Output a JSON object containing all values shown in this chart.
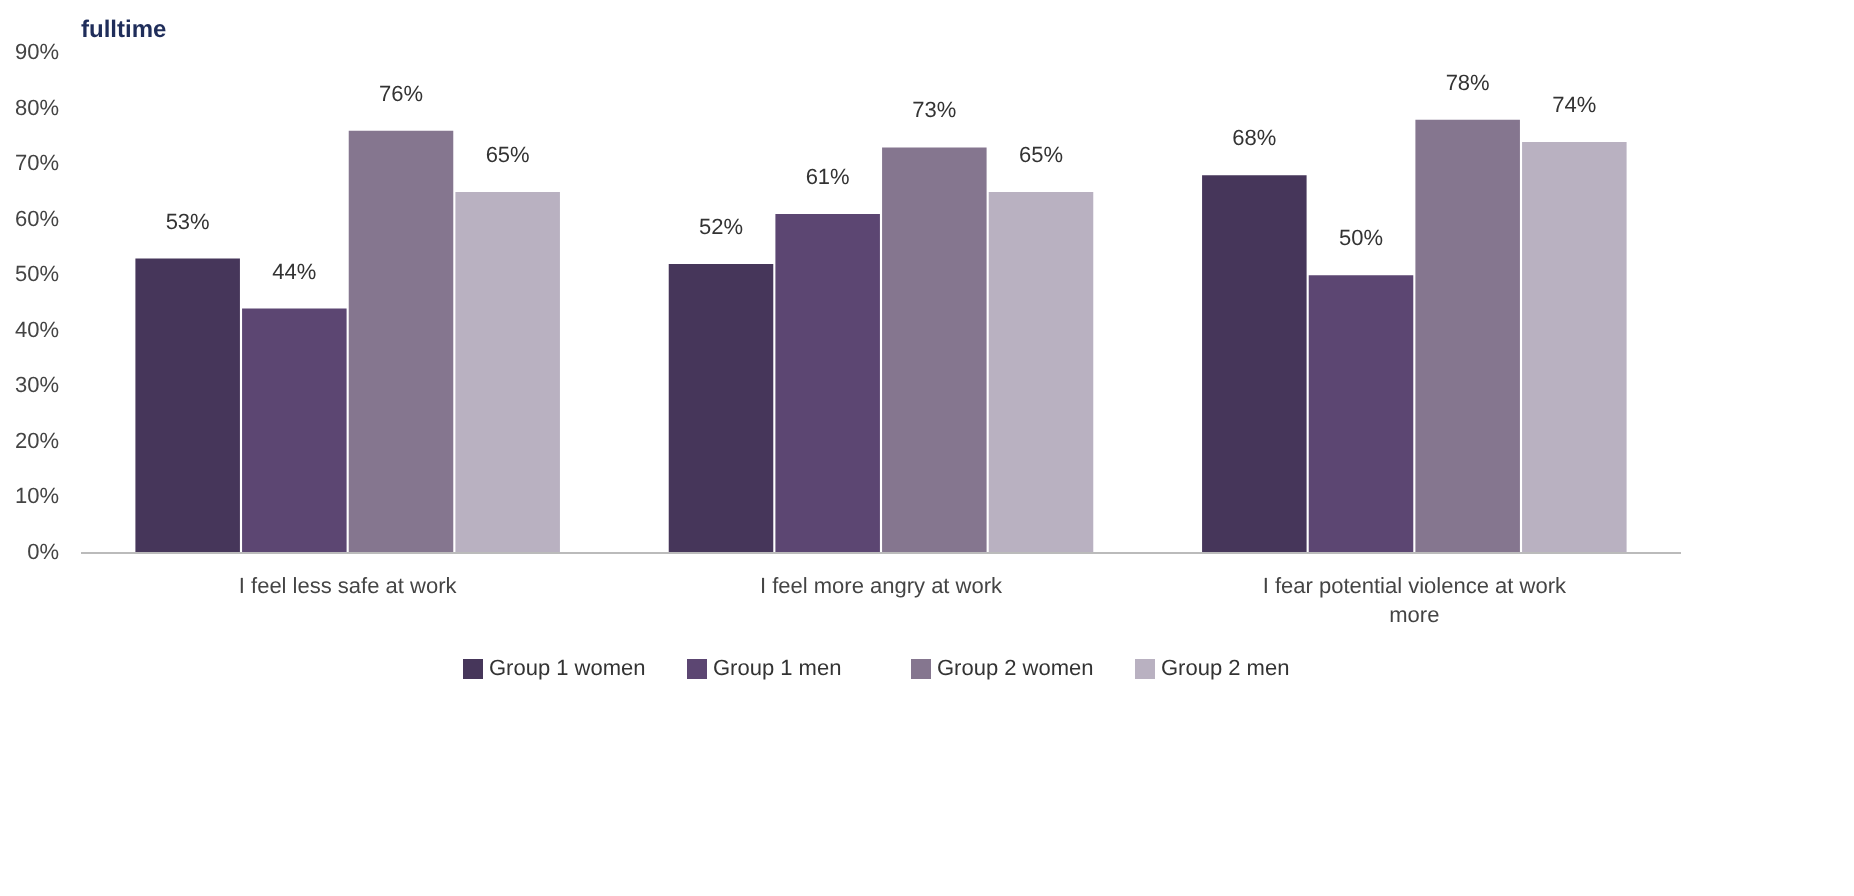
{
  "chart_data": {
    "type": "bar",
    "title": "fulltime",
    "categories": [
      "I feel less safe at work",
      "I feel more angry at work",
      "I fear potential violence at work more"
    ],
    "series": [
      {
        "name": "Group 1 women",
        "color": "#46365a",
        "values": [
          53,
          52,
          68
        ],
        "value_labels": [
          "53%",
          "52%",
          "68%"
        ]
      },
      {
        "name": "Group 1 men",
        "color": "#5c4672",
        "values": [
          44,
          61,
          50
        ],
        "value_labels": [
          "44%",
          "61%",
          "50%"
        ]
      },
      {
        "name": "Group 2 women",
        "color": "#85768f",
        "values": [
          76,
          73,
          78
        ],
        "value_labels": [
          "76%",
          "73%",
          "78%"
        ]
      },
      {
        "name": "Group 2 men",
        "color": "#b9b1c1",
        "values": [
          65,
          65,
          74
        ],
        "value_labels": [
          "65%",
          "65%",
          "74%"
        ]
      }
    ],
    "ylim": [
      0,
      90
    ],
    "yticks": [
      {
        "value": 0,
        "label": "0%"
      },
      {
        "value": 10,
        "label": "10%"
      },
      {
        "value": 20,
        "label": "20%"
      },
      {
        "value": 30,
        "label": "30%"
      },
      {
        "value": 40,
        "label": "40%"
      },
      {
        "value": 50,
        "label": "50%"
      },
      {
        "value": 60,
        "label": "60%"
      },
      {
        "value": 70,
        "label": "70%"
      },
      {
        "value": 80,
        "label": "80%"
      },
      {
        "value": 90,
        "label": "90%"
      }
    ],
    "grid": false,
    "legend": "bottom"
  }
}
